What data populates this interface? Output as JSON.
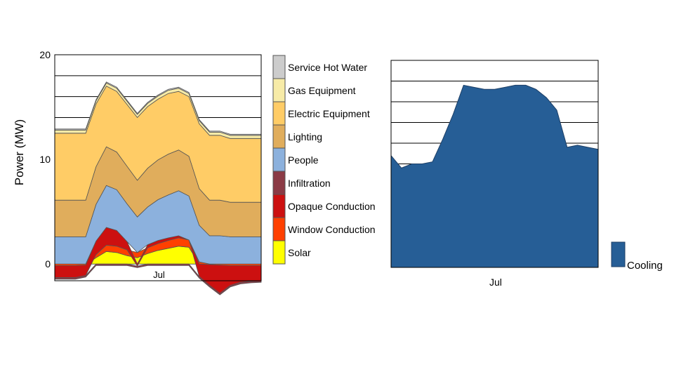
{
  "chart_data": [
    {
      "type": "area",
      "stacked": true,
      "ylabel": "Power (MW)",
      "xlabel": "",
      "ylim": [
        -1.6,
        20
      ],
      "yticks": [
        "0",
        "10",
        "20"
      ],
      "x_tick_labels": [
        "Jul"
      ],
      "x": [
        0,
        1,
        2,
        3,
        4,
        5,
        6,
        7,
        8,
        9,
        10,
        11,
        12,
        13,
        14,
        15,
        16,
        17,
        18,
        19,
        20
      ],
      "grid": true,
      "legend_placement": "right",
      "series": [
        {
          "name": "Solar",
          "color": "#ffff00",
          "values": [
            0,
            0,
            0,
            0,
            0.6,
            1.2,
            1.1,
            0.8,
            0.6,
            1.0,
            1.3,
            1.5,
            1.7,
            1.6,
            0,
            0,
            0,
            0,
            0,
            0,
            0
          ]
        },
        {
          "name": "Window Conduction",
          "color": "#ff4000",
          "values": [
            -0.15,
            -0.15,
            -0.15,
            -0.1,
            0.3,
            0.6,
            0.6,
            0.55,
            0.5,
            0.55,
            0.65,
            0.75,
            0.8,
            0.7,
            0.2,
            -0.05,
            -0.1,
            -0.15,
            -0.15,
            -0.15,
            -0.15
          ]
        },
        {
          "name": "Opaque Conduction",
          "color": "#cc1010",
          "values": [
            -1.15,
            -1.15,
            -1.15,
            -1.0,
            1.3,
            1.7,
            1.5,
            0.8,
            -0.2,
            0.3,
            0.3,
            0.25,
            0.2,
            0.0,
            -1.2,
            -2.0,
            -2.7,
            -1.9,
            -1.6,
            -1.5,
            -1.45
          ]
        },
        {
          "name": "Infiltration",
          "color": "#8b3a45",
          "values": [
            -0.15,
            -0.15,
            -0.15,
            -0.15,
            -0.15,
            -0.15,
            -0.15,
            -0.15,
            -0.15,
            -0.15,
            -0.15,
            -0.15,
            -0.15,
            -0.15,
            -0.15,
            -0.15,
            -0.15,
            -0.15,
            -0.15,
            -0.15,
            -0.15
          ]
        },
        {
          "name": "People",
          "color": "#8cb1dd",
          "values": [
            2.6,
            2.6,
            2.6,
            2.6,
            3.5,
            4.0,
            3.9,
            3.6,
            3.4,
            3.6,
            3.9,
            4.1,
            4.3,
            4.2,
            3.5,
            2.7,
            2.7,
            2.6,
            2.6,
            2.6,
            2.6
          ]
        },
        {
          "name": "Lighting",
          "color": "#e0ad5c",
          "values": [
            3.5,
            3.5,
            3.5,
            3.5,
            3.6,
            3.7,
            3.6,
            3.6,
            3.5,
            3.7,
            3.8,
            3.9,
            3.9,
            3.8,
            3.5,
            3.4,
            3.4,
            3.3,
            3.3,
            3.3,
            3.3
          ]
        },
        {
          "name": "Electric Equipment",
          "color": "#ffcc66",
          "values": [
            6.4,
            6.4,
            6.4,
            6.4,
            6.0,
            5.8,
            5.8,
            5.9,
            6.0,
            5.9,
            5.8,
            5.8,
            5.6,
            5.7,
            6.2,
            6.2,
            6.2,
            6.1,
            6.1,
            6.1,
            6.1
          ]
        },
        {
          "name": "Gas Equipment",
          "color": "#f7eba7",
          "values": [
            0.3,
            0.3,
            0.3,
            0.3,
            0.3,
            0.3,
            0.3,
            0.3,
            0.3,
            0.3,
            0.3,
            0.3,
            0.3,
            0.3,
            0.3,
            0.3,
            0.3,
            0.3,
            0.3,
            0.3,
            0.3
          ]
        },
        {
          "name": "Service Hot Water",
          "color": "#cccccc",
          "values": [
            0.1,
            0.1,
            0.1,
            0.1,
            0.1,
            0.1,
            0.1,
            0.1,
            0.1,
            0.1,
            0.1,
            0.1,
            0.1,
            0.1,
            0.1,
            0.1,
            0.1,
            0.1,
            0.1,
            0.1,
            0.1
          ]
        }
      ],
      "legend_order_top_to_bottom": [
        "Service Hot Water",
        "Gas Equipment",
        "Electric Equipment",
        "Lighting",
        "People",
        "Infiltration",
        "Opaque Conduction",
        "Window Conduction",
        "Solar"
      ]
    },
    {
      "type": "area",
      "x_tick_labels": [
        "Jul"
      ],
      "ylim": [
        0,
        10
      ],
      "grid": true,
      "legend_placement": "right",
      "x": [
        0,
        1,
        2,
        3,
        4,
        5,
        6,
        7,
        8,
        9,
        10,
        11,
        12,
        13,
        14,
        15,
        16,
        17,
        18,
        19,
        20
      ],
      "series": [
        {
          "name": "Cooling",
          "color": "#265e96",
          "values": [
            5.4,
            4.8,
            5.0,
            5.0,
            5.1,
            6.2,
            7.4,
            8.8,
            8.7,
            8.6,
            8.6,
            8.7,
            8.8,
            8.8,
            8.6,
            8.2,
            7.6,
            5.8,
            5.9,
            5.8,
            5.7
          ]
        }
      ]
    }
  ]
}
